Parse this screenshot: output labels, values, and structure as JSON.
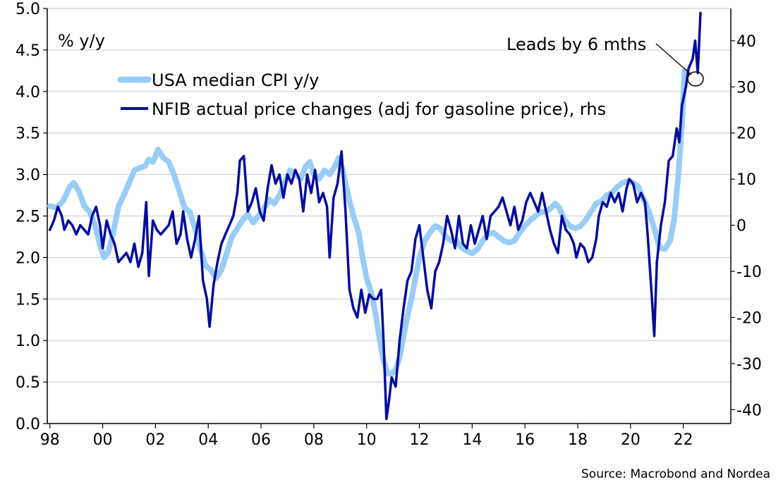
{
  "chart_data": {
    "type": "line",
    "unit_label": "% y/y",
    "source": "Source: Macrobond and Nordea",
    "annotation": "Leads by 6 mths",
    "legend_position": "top-left",
    "grid": true,
    "x_ticks": [
      "98",
      "00",
      "02",
      "04",
      "06",
      "08",
      "10",
      "12",
      "14",
      "16",
      "18",
      "20",
      "22"
    ],
    "x_range": [
      1997.9,
      2023.8
    ],
    "y_left": {
      "range": [
        0,
        5.0
      ],
      "ticks": [
        "0.0",
        "0.5",
        "1.0",
        "1.5",
        "2.0",
        "2.5",
        "3.0",
        "3.5",
        "4.0",
        "4.5",
        "5.0"
      ]
    },
    "y_right": {
      "range": [
        -43,
        47
      ],
      "ticks": [
        "-40",
        "-30",
        "-20",
        "-10",
        "0",
        "10",
        "20",
        "30",
        "40"
      ]
    },
    "series": [
      {
        "name": "USA median CPI y/y",
        "axis": "left",
        "color": "#99ccf7",
        "points": [
          [
            1998.0,
            2.62
          ],
          [
            1998.25,
            2.6
          ],
          [
            1998.5,
            2.68
          ],
          [
            1998.75,
            2.85
          ],
          [
            1998.9,
            2.9
          ],
          [
            1999.1,
            2.8
          ],
          [
            1999.3,
            2.62
          ],
          [
            1999.5,
            2.55
          ],
          [
            1999.7,
            2.4
          ],
          [
            1999.9,
            2.15
          ],
          [
            2000.05,
            2.0
          ],
          [
            2000.2,
            2.05
          ],
          [
            2000.4,
            2.3
          ],
          [
            2000.6,
            2.62
          ],
          [
            2000.8,
            2.75
          ],
          [
            2001.0,
            2.9
          ],
          [
            2001.2,
            3.05
          ],
          [
            2001.4,
            3.08
          ],
          [
            2001.6,
            3.1
          ],
          [
            2001.75,
            3.18
          ],
          [
            2001.9,
            3.15
          ],
          [
            2002.0,
            3.22
          ],
          [
            2002.1,
            3.3
          ],
          [
            2002.3,
            3.2
          ],
          [
            2002.5,
            3.15
          ],
          [
            2002.7,
            3.0
          ],
          [
            2002.9,
            2.8
          ],
          [
            2003.1,
            2.6
          ],
          [
            2003.3,
            2.55
          ],
          [
            2003.5,
            2.35
          ],
          [
            2003.7,
            2.1
          ],
          [
            2003.9,
            1.9
          ],
          [
            2004.1,
            1.85
          ],
          [
            2004.3,
            1.75
          ],
          [
            2004.5,
            1.85
          ],
          [
            2004.7,
            2.05
          ],
          [
            2004.9,
            2.25
          ],
          [
            2005.1,
            2.35
          ],
          [
            2005.3,
            2.45
          ],
          [
            2005.5,
            2.52
          ],
          [
            2005.7,
            2.42
          ],
          [
            2005.9,
            2.5
          ],
          [
            2006.1,
            2.58
          ],
          [
            2006.3,
            2.7
          ],
          [
            2006.5,
            2.65
          ],
          [
            2006.7,
            2.75
          ],
          [
            2006.9,
            2.9
          ],
          [
            2007.1,
            3.05
          ],
          [
            2007.3,
            3.0
          ],
          [
            2007.5,
            2.95
          ],
          [
            2007.7,
            3.1
          ],
          [
            2007.85,
            3.15
          ],
          [
            2008.0,
            3.0
          ],
          [
            2008.2,
            2.95
          ],
          [
            2008.4,
            3.05
          ],
          [
            2008.6,
            3.0
          ],
          [
            2008.8,
            3.1
          ],
          [
            2008.95,
            3.2
          ],
          [
            2009.1,
            3.05
          ],
          [
            2009.3,
            2.75
          ],
          [
            2009.5,
            2.5
          ],
          [
            2009.7,
            2.3
          ],
          [
            2009.85,
            2.0
          ],
          [
            2010.0,
            1.75
          ],
          [
            2010.2,
            1.55
          ],
          [
            2010.35,
            1.3
          ],
          [
            2010.5,
            1.0
          ],
          [
            2010.65,
            0.75
          ],
          [
            2010.8,
            0.6
          ],
          [
            2010.95,
            0.6
          ],
          [
            2011.1,
            0.65
          ],
          [
            2011.25,
            0.8
          ],
          [
            2011.4,
            1.05
          ],
          [
            2011.55,
            1.3
          ],
          [
            2011.7,
            1.5
          ],
          [
            2011.85,
            1.75
          ],
          [
            2012.0,
            2.0
          ],
          [
            2012.2,
            2.2
          ],
          [
            2012.4,
            2.3
          ],
          [
            2012.6,
            2.38
          ],
          [
            2012.8,
            2.35
          ],
          [
            2013.0,
            2.25
          ],
          [
            2013.2,
            2.2
          ],
          [
            2013.4,
            2.2
          ],
          [
            2013.6,
            2.12
          ],
          [
            2013.8,
            2.08
          ],
          [
            2014.0,
            2.05
          ],
          [
            2014.2,
            2.1
          ],
          [
            2014.4,
            2.2
          ],
          [
            2014.6,
            2.28
          ],
          [
            2014.8,
            2.3
          ],
          [
            2015.0,
            2.25
          ],
          [
            2015.2,
            2.2
          ],
          [
            2015.4,
            2.18
          ],
          [
            2015.6,
            2.2
          ],
          [
            2015.8,
            2.3
          ],
          [
            2016.0,
            2.38
          ],
          [
            2016.2,
            2.45
          ],
          [
            2016.4,
            2.5
          ],
          [
            2016.6,
            2.55
          ],
          [
            2016.8,
            2.55
          ],
          [
            2017.0,
            2.6
          ],
          [
            2017.15,
            2.65
          ],
          [
            2017.3,
            2.6
          ],
          [
            2017.5,
            2.45
          ],
          [
            2017.7,
            2.38
          ],
          [
            2017.9,
            2.35
          ],
          [
            2018.1,
            2.38
          ],
          [
            2018.3,
            2.45
          ],
          [
            2018.5,
            2.55
          ],
          [
            2018.7,
            2.65
          ],
          [
            2018.9,
            2.68
          ],
          [
            2019.1,
            2.75
          ],
          [
            2019.3,
            2.78
          ],
          [
            2019.5,
            2.85
          ],
          [
            2019.7,
            2.9
          ],
          [
            2019.9,
            2.92
          ],
          [
            2020.1,
            2.9
          ],
          [
            2020.3,
            2.85
          ],
          [
            2020.5,
            2.7
          ],
          [
            2020.7,
            2.55
          ],
          [
            2020.9,
            2.35
          ],
          [
            2021.1,
            2.12
          ],
          [
            2021.3,
            2.1
          ],
          [
            2021.5,
            2.2
          ],
          [
            2021.65,
            2.45
          ],
          [
            2021.8,
            2.95
          ],
          [
            2021.95,
            3.6
          ],
          [
            2022.05,
            4.25
          ]
        ]
      },
      {
        "name": "NFIB actual price changes (adj for gasoline price), rhs",
        "axis": "right",
        "color": "#000d9c",
        "points": [
          [
            1998.0,
            -1
          ],
          [
            1998.15,
            1
          ],
          [
            1998.3,
            4
          ],
          [
            1998.45,
            2
          ],
          [
            1998.55,
            -1
          ],
          [
            1998.7,
            1
          ],
          [
            1998.85,
            0
          ],
          [
            1999.0,
            -2
          ],
          [
            1999.15,
            0
          ],
          [
            1999.3,
            -1
          ],
          [
            1999.45,
            -2
          ],
          [
            1999.6,
            2
          ],
          [
            1999.75,
            4
          ],
          [
            1999.9,
            0
          ],
          [
            2000.0,
            -5
          ],
          [
            2000.15,
            1
          ],
          [
            2000.3,
            -2
          ],
          [
            2000.45,
            -4
          ],
          [
            2000.6,
            -8
          ],
          [
            2000.75,
            -7
          ],
          [
            2000.9,
            -6
          ],
          [
            2001.05,
            -8
          ],
          [
            2001.2,
            -4
          ],
          [
            2001.35,
            -9
          ],
          [
            2001.5,
            -6
          ],
          [
            2001.65,
            5
          ],
          [
            2001.75,
            -11
          ],
          [
            2001.9,
            1
          ],
          [
            2002.05,
            -1
          ],
          [
            2002.2,
            -2
          ],
          [
            2002.35,
            -1
          ],
          [
            2002.5,
            0
          ],
          [
            2002.65,
            3
          ],
          [
            2002.8,
            -4
          ],
          [
            2002.95,
            -2
          ],
          [
            2003.05,
            3
          ],
          [
            2003.2,
            -3
          ],
          [
            2003.35,
            -7
          ],
          [
            2003.5,
            -3
          ],
          [
            2003.65,
            2
          ],
          [
            2003.8,
            -12
          ],
          [
            2003.95,
            -16
          ],
          [
            2004.05,
            -22
          ],
          [
            2004.2,
            -13
          ],
          [
            2004.35,
            -8
          ],
          [
            2004.5,
            -4
          ],
          [
            2004.65,
            -2
          ],
          [
            2004.8,
            0
          ],
          [
            2004.95,
            2
          ],
          [
            2005.1,
            7
          ],
          [
            2005.2,
            14
          ],
          [
            2005.35,
            15
          ],
          [
            2005.5,
            3
          ],
          [
            2005.65,
            5
          ],
          [
            2005.8,
            8
          ],
          [
            2005.95,
            3
          ],
          [
            2006.1,
            1
          ],
          [
            2006.25,
            8
          ],
          [
            2006.4,
            13
          ],
          [
            2006.55,
            9
          ],
          [
            2006.7,
            11
          ],
          [
            2006.85,
            6
          ],
          [
            2007.0,
            11
          ],
          [
            2007.15,
            9
          ],
          [
            2007.3,
            12
          ],
          [
            2007.45,
            10
          ],
          [
            2007.6,
            3
          ],
          [
            2007.75,
            11
          ],
          [
            2007.9,
            7
          ],
          [
            2008.05,
            12
          ],
          [
            2008.2,
            5
          ],
          [
            2008.35,
            7
          ],
          [
            2008.5,
            4
          ],
          [
            2008.6,
            -7
          ],
          [
            2008.75,
            6
          ],
          [
            2008.9,
            9
          ],
          [
            2009.05,
            16
          ],
          [
            2009.2,
            3
          ],
          [
            2009.35,
            -14
          ],
          [
            2009.5,
            -18
          ],
          [
            2009.65,
            -20
          ],
          [
            2009.8,
            -14
          ],
          [
            2009.95,
            -19
          ],
          [
            2010.1,
            -15
          ],
          [
            2010.25,
            -16
          ],
          [
            2010.4,
            -16
          ],
          [
            2010.55,
            -14
          ],
          [
            2010.65,
            -26
          ],
          [
            2010.75,
            -42
          ],
          [
            2010.85,
            -38
          ],
          [
            2010.95,
            -33
          ],
          [
            2011.1,
            -35
          ],
          [
            2011.25,
            -25
          ],
          [
            2011.4,
            -18
          ],
          [
            2011.55,
            -12
          ],
          [
            2011.7,
            -10
          ],
          [
            2011.85,
            -3
          ],
          [
            2012.0,
            0
          ],
          [
            2012.15,
            -7
          ],
          [
            2012.3,
            -14
          ],
          [
            2012.45,
            -18
          ],
          [
            2012.6,
            -10
          ],
          [
            2012.75,
            -8
          ],
          [
            2012.9,
            -4
          ],
          [
            2013.05,
            2
          ],
          [
            2013.2,
            -1
          ],
          [
            2013.35,
            -5
          ],
          [
            2013.5,
            2
          ],
          [
            2013.65,
            -4
          ],
          [
            2013.8,
            -5
          ],
          [
            2013.95,
            0
          ],
          [
            2014.1,
            -4
          ],
          [
            2014.25,
            -1
          ],
          [
            2014.4,
            2
          ],
          [
            2014.55,
            -3
          ],
          [
            2014.7,
            2
          ],
          [
            2014.85,
            3
          ],
          [
            2015.0,
            4
          ],
          [
            2015.15,
            6
          ],
          [
            2015.3,
            3
          ],
          [
            2015.45,
            0
          ],
          [
            2015.6,
            4
          ],
          [
            2015.75,
            -1
          ],
          [
            2015.9,
            1
          ],
          [
            2016.05,
            5
          ],
          [
            2016.2,
            7
          ],
          [
            2016.35,
            5
          ],
          [
            2016.5,
            3
          ],
          [
            2016.65,
            7
          ],
          [
            2016.8,
            3
          ],
          [
            2016.95,
            -1
          ],
          [
            2017.1,
            -4
          ],
          [
            2017.25,
            -6
          ],
          [
            2017.4,
            2
          ],
          [
            2017.55,
            -1
          ],
          [
            2017.7,
            -2
          ],
          [
            2017.85,
            -4
          ],
          [
            2017.95,
            -7
          ],
          [
            2018.1,
            -4
          ],
          [
            2018.25,
            -5
          ],
          [
            2018.4,
            -8
          ],
          [
            2018.55,
            -7
          ],
          [
            2018.7,
            -3
          ],
          [
            2018.8,
            2
          ],
          [
            2018.95,
            5
          ],
          [
            2019.1,
            4
          ],
          [
            2019.25,
            7
          ],
          [
            2019.4,
            5
          ],
          [
            2019.55,
            7
          ],
          [
            2019.7,
            3
          ],
          [
            2019.85,
            8
          ],
          [
            2019.95,
            10
          ],
          [
            2020.1,
            9
          ],
          [
            2020.25,
            5
          ],
          [
            2020.4,
            7
          ],
          [
            2020.55,
            5
          ],
          [
            2020.65,
            -2
          ],
          [
            2020.8,
            -15
          ],
          [
            2020.9,
            -24
          ],
          [
            2021.0,
            -8
          ],
          [
            2021.15,
            0
          ],
          [
            2021.3,
            5
          ],
          [
            2021.45,
            14
          ],
          [
            2021.6,
            15
          ],
          [
            2021.75,
            21
          ],
          [
            2021.85,
            18
          ],
          [
            2021.95,
            26
          ],
          [
            2022.1,
            30
          ],
          [
            2022.2,
            34
          ],
          [
            2022.35,
            36
          ],
          [
            2022.45,
            40
          ],
          [
            2022.55,
            33
          ],
          [
            2022.65,
            46
          ]
        ]
      }
    ]
  }
}
